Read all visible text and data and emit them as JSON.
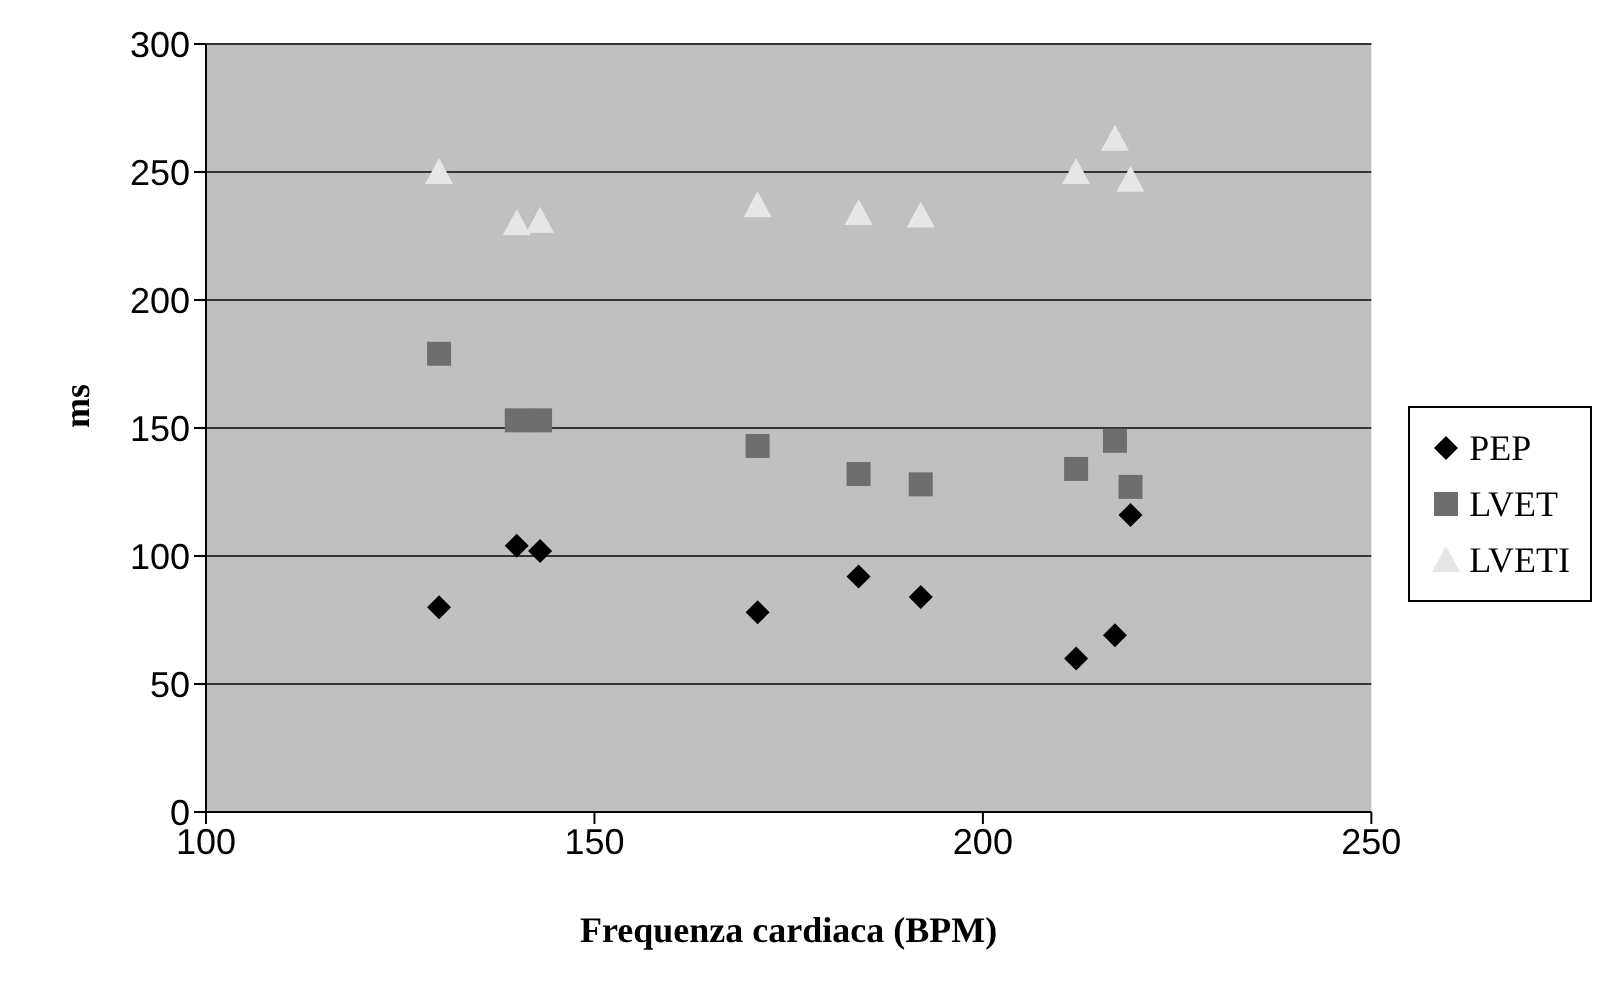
{
  "chart_data": {
    "type": "scatter",
    "xlabel": "Frequenza cardiaca (BPM)",
    "ylabel": "ms",
    "x": [
      130,
      140,
      143,
      171,
      184,
      192,
      212,
      217,
      219
    ],
    "series": [
      {
        "name": "PEP",
        "color": "#000000",
        "marker": "diamond",
        "values": [
          80,
          104,
          102,
          78,
          92,
          84,
          60,
          69,
          116
        ]
      },
      {
        "name": "LVET",
        "color": "#6e6e6e",
        "marker": "square",
        "values": [
          179,
          153,
          153,
          143,
          132,
          128,
          134,
          145,
          127
        ]
      },
      {
        "name": "LVETI",
        "color": "#e6e6e6",
        "marker": "triangle",
        "values": [
          250,
          230,
          231,
          237,
          234,
          233,
          250,
          263,
          247
        ]
      }
    ],
    "xlim": [
      100,
      250
    ],
    "xticks": [
      100,
      150,
      200,
      250
    ],
    "ylim": [
      0,
      300
    ],
    "yticks": [
      0,
      50,
      100,
      150,
      200,
      250,
      300
    ],
    "grid": "y",
    "legend": "right"
  }
}
